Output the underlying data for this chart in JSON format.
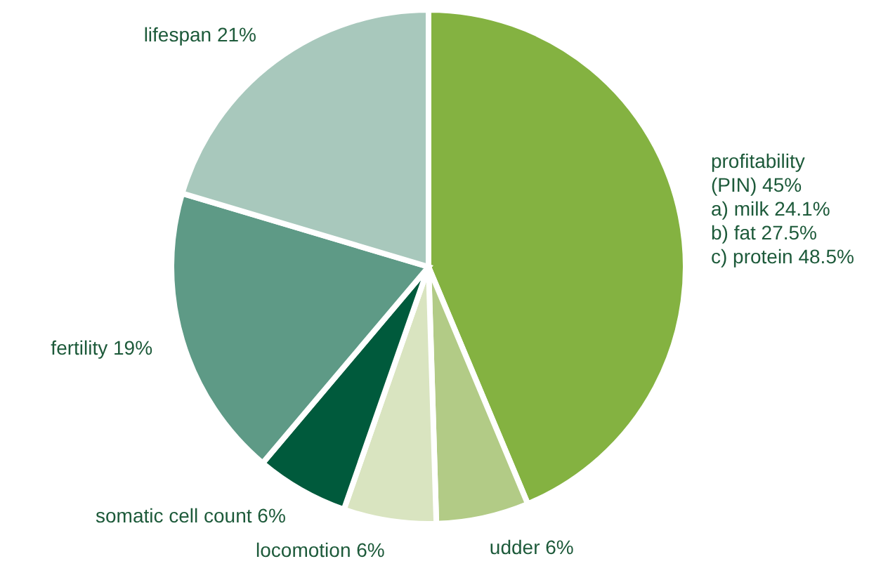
{
  "chart_data": {
    "type": "pie",
    "categories": [
      "profitability\n(PIN)",
      "udder",
      "locomotion",
      "somatic cell count",
      "fertility",
      "lifespan"
    ],
    "values": [
      45,
      6,
      6,
      6,
      19,
      21
    ],
    "value_labels": [
      "45%",
      "6%",
      "6%",
      "6%",
      "19%",
      "21%"
    ],
    "colors": [
      "#84b241",
      "#b2cb86",
      "#d9e4c0",
      "#005a3c",
      "#5e9a86",
      "#a8c8bc"
    ],
    "annotations": [
      "a) milk 24.1%",
      "b) fat 27.5%",
      "c) protein 48.5%"
    ]
  }
}
